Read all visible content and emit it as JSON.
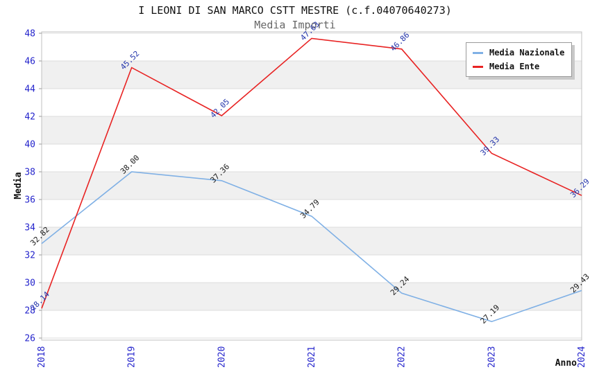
{
  "title": "I LEONI DI SAN MARCO CSTT MESTRE (c.f.04070640273)",
  "subtitle": "Media Importi",
  "chart_data": {
    "type": "line",
    "categories": [
      "2018",
      "2019",
      "2020",
      "2021",
      "2022",
      "2023",
      "2024"
    ],
    "series": [
      {
        "name": "Media Nazionale",
        "color": "#7FB0E5",
        "label_color": "#1a1a1a",
        "values": [
          32.82,
          38.0,
          37.36,
          34.79,
          29.24,
          27.19,
          29.43
        ]
      },
      {
        "name": "Media Ente",
        "color": "#E82323",
        "label_color": "#2233AA",
        "values": [
          28.14,
          45.52,
          42.05,
          47.63,
          46.86,
          39.33,
          36.29
        ]
      }
    ],
    "xlabel": "Anno",
    "ylabel": "Media",
    "ylim": [
      26,
      48
    ],
    "ytick_step": 2,
    "yticks": [
      26,
      28,
      30,
      32,
      34,
      36,
      38,
      40,
      42,
      44,
      46,
      48
    ],
    "grid": true,
    "legend_position": "top-right",
    "colors": {
      "axis_tick_text": "#2424CC",
      "band_gray": "#F0F0F0",
      "gridline": "#DCDCDC",
      "plot_border": "#C0C0C0",
      "axis_title_text": "#111111"
    }
  }
}
